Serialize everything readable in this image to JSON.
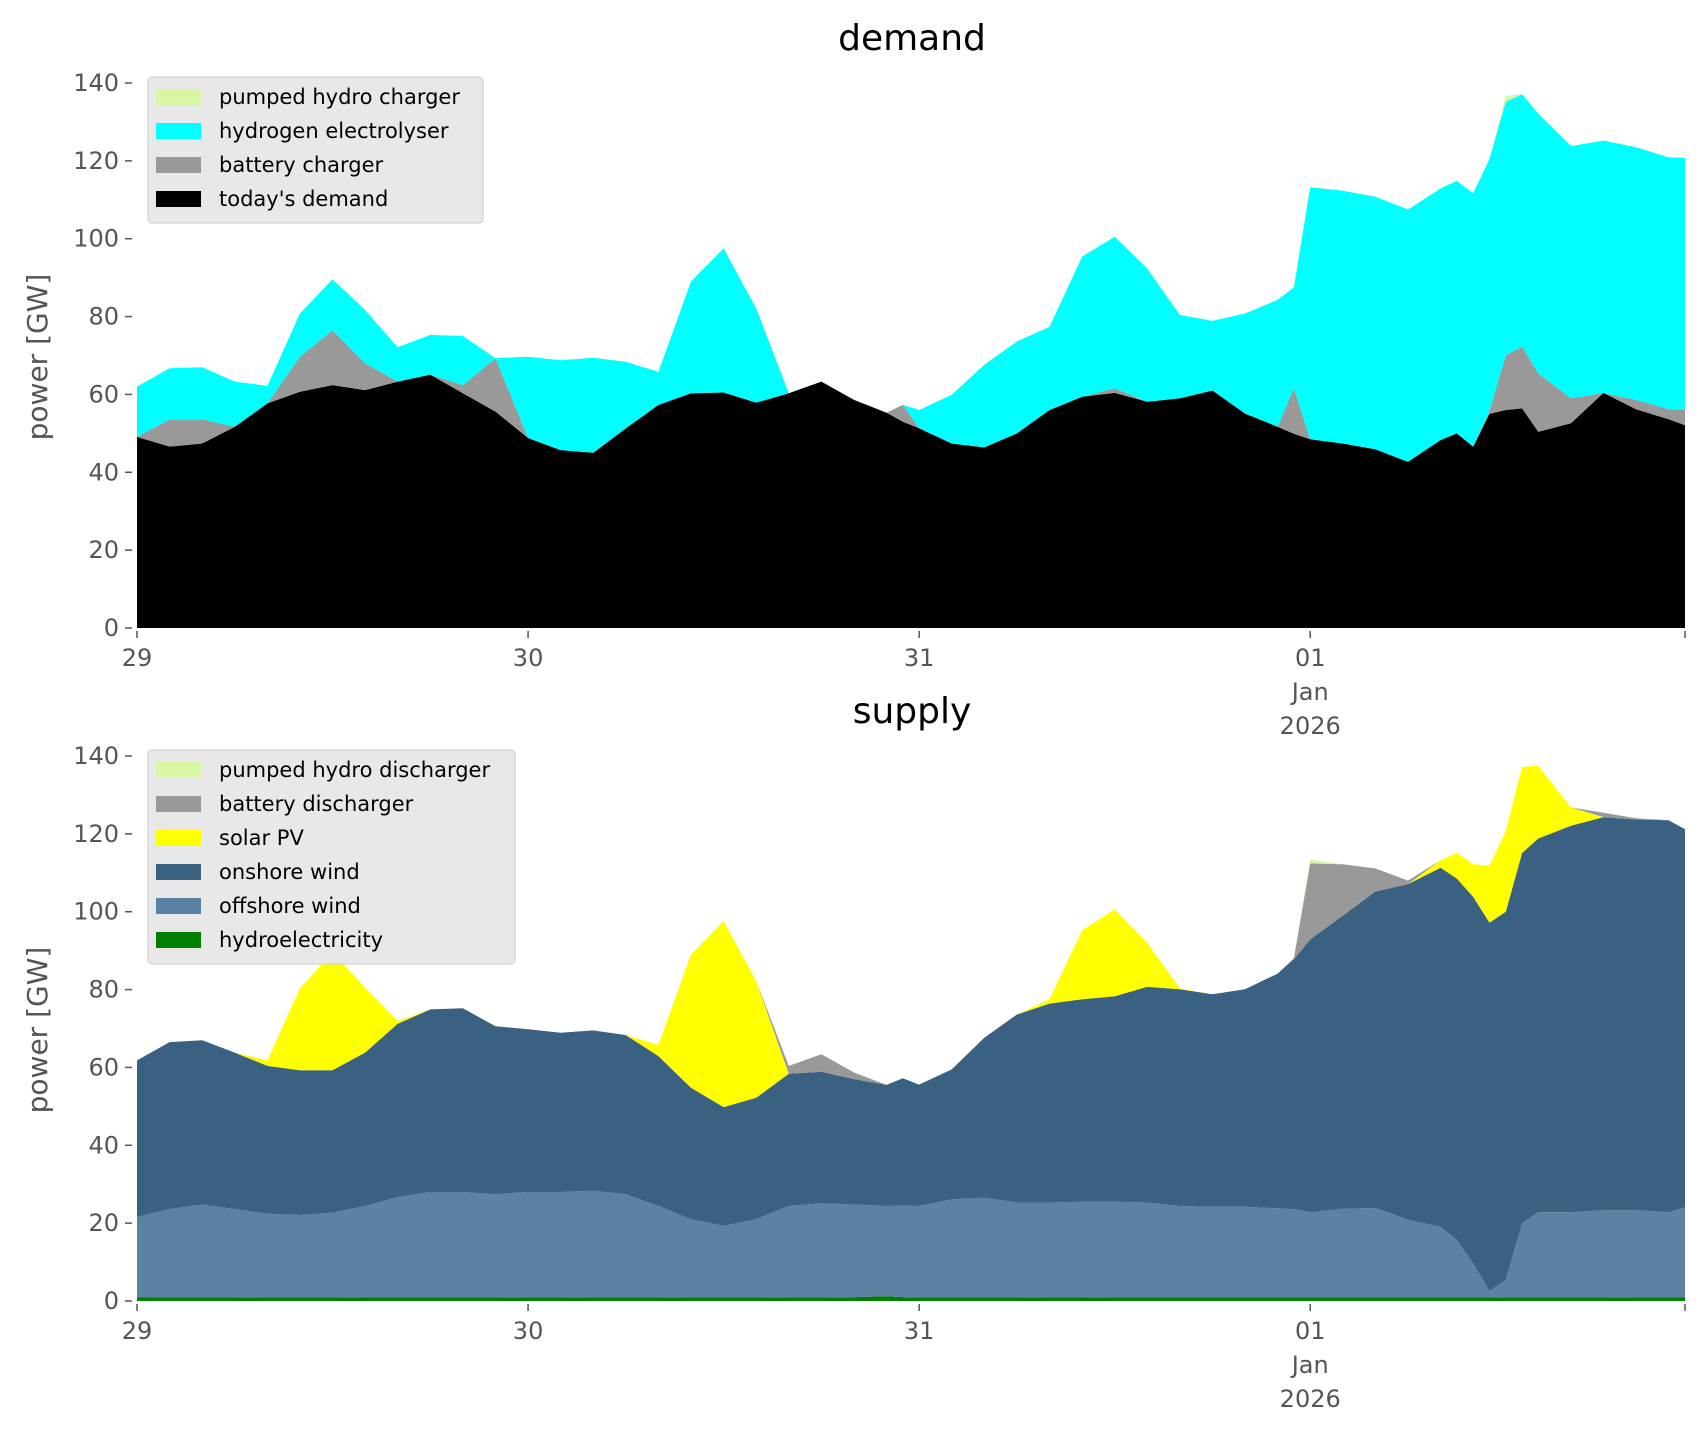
{
  "chart_data": [
    {
      "type": "area",
      "stacked": true,
      "title": "demand",
      "xlabel": "",
      "ylabel": "power [GW]",
      "ylim": [
        0,
        140
      ],
      "yticks": [
        0,
        20,
        40,
        60,
        80,
        100,
        120,
        140
      ],
      "x_unit": "hours since 29 Dec 2025 00:00",
      "xlim": [
        0,
        95
      ],
      "xticks": [
        {
          "hour": 0,
          "label": [
            "29"
          ]
        },
        {
          "hour": 24,
          "label": [
            "30"
          ]
        },
        {
          "hour": 48,
          "label": [
            "31"
          ]
        },
        {
          "hour": 72,
          "label": [
            "01",
            "Jan",
            "2026"
          ]
        },
        {
          "hour": 95,
          "label": [
            ""
          ]
        }
      ],
      "grid": false,
      "legend_position": "top-left",
      "x": [
        0,
        2,
        4,
        6,
        8,
        10,
        12,
        14,
        16,
        18,
        20,
        22,
        24,
        26,
        28,
        30,
        32,
        34,
        36,
        38,
        40,
        42,
        44,
        46,
        47,
        48,
        50,
        52,
        54,
        56,
        58,
        60,
        62,
        64,
        66,
        68,
        70,
        71,
        72,
        74,
        76,
        78,
        80,
        81,
        82,
        83,
        84,
        85,
        86,
        88,
        90,
        92,
        94,
        95
      ],
      "series": [
        {
          "name": "today's demand",
          "color": "#000000",
          "values": [
            49.1,
            46.6,
            47.4,
            51.7,
            57.7,
            60.7,
            62.4,
            61.1,
            63.3,
            65.1,
            60.3,
            55.6,
            48.8,
            45.7,
            45.0,
            51.3,
            57.3,
            60.3,
            60.5,
            57.9,
            60.3,
            63.3,
            58.6,
            55.3,
            53.0,
            51.3,
            47.4,
            46.4,
            50.0,
            56.0,
            59.4,
            60.4,
            58.1,
            59.0,
            61.0,
            55.1,
            51.7,
            49.9,
            48.5,
            47.4,
            45.9,
            42.7,
            48.3,
            50.0,
            46.6,
            55.0,
            56.0,
            56.4,
            50.4,
            52.6,
            60.4,
            56.2,
            53.6,
            52.1
          ]
        },
        {
          "name": "battery charger",
          "color": "#999999",
          "values": [
            0,
            7.0,
            6.2,
            0,
            0,
            9.0,
            14.1,
            6.9,
            0,
            0,
            2.1,
            13.7,
            0,
            0,
            0,
            0,
            0,
            0,
            0,
            0,
            0,
            0,
            0,
            0,
            4.3,
            0,
            0,
            0,
            0,
            0,
            0,
            1.2,
            0,
            0,
            0,
            0,
            0,
            11.7,
            0,
            0,
            0,
            0,
            0,
            0,
            0,
            0.8,
            14.1,
            15.9,
            15.0,
            6.4,
            0,
            2.4,
            2.6,
            3.9
          ]
        },
        {
          "name": "hydrogen electrolyser",
          "color": "#00ffff",
          "values": [
            12.9,
            13.1,
            13.4,
            11.6,
            4.5,
            11.1,
            13.1,
            13.7,
            8.8,
            10.2,
            12.6,
            0,
            20.9,
            23.1,
            24.4,
            17.1,
            8.5,
            28.7,
            37.0,
            24.2,
            0,
            0,
            0,
            0,
            0,
            4.7,
            12.5,
            21.2,
            23.6,
            21.4,
            36.0,
            38.9,
            34.2,
            21.4,
            17.9,
            25.7,
            32.6,
            25.9,
            64.7,
            64.9,
            64.9,
            64.8,
            64.6,
            64.9,
            65.1,
            64.7,
            65.1,
            64.8,
            66.7,
            64.8,
            64.8,
            64.9,
            64.7,
            64.8
          ]
        },
        {
          "name": "pumped hydro charger",
          "color": "#d9f5a6",
          "values": [
            0,
            0,
            0,
            0,
            0,
            0,
            0,
            0,
            0,
            0,
            0,
            0,
            0,
            0,
            0,
            0,
            0,
            0,
            0,
            0,
            0,
            0,
            0,
            0,
            0,
            0,
            0,
            0,
            0,
            0,
            0,
            0,
            0,
            0,
            0,
            0,
            0,
            0,
            0,
            0,
            0,
            0,
            0,
            0,
            0,
            0,
            1.5,
            0,
            0,
            0,
            0,
            0,
            0,
            0
          ]
        }
      ],
      "legend": [
        "pumped hydro charger",
        "hydrogen electrolyser",
        "battery charger",
        "today's demand"
      ]
    },
    {
      "type": "area",
      "stacked": true,
      "title": "supply",
      "xlabel": "",
      "ylabel": "power [GW]",
      "ylim": [
        0,
        140
      ],
      "yticks": [
        0,
        20,
        40,
        60,
        80,
        100,
        120,
        140
      ],
      "x_unit": "hours since 29 Dec 2025 00:00",
      "xlim": [
        0,
        95
      ],
      "xticks": [
        {
          "hour": 0,
          "label": [
            "29"
          ]
        },
        {
          "hour": 24,
          "label": [
            "30"
          ]
        },
        {
          "hour": 48,
          "label": [
            "31"
          ]
        },
        {
          "hour": 72,
          "label": [
            "01",
            "Jan",
            "2026"
          ]
        },
        {
          "hour": 95,
          "label": [
            ""
          ]
        }
      ],
      "grid": false,
      "legend_position": "top-left",
      "x": [
        0,
        2,
        4,
        6,
        8,
        10,
        12,
        14,
        16,
        18,
        20,
        22,
        24,
        26,
        28,
        30,
        32,
        34,
        36,
        38,
        40,
        42,
        44,
        46,
        47,
        48,
        50,
        52,
        54,
        56,
        58,
        60,
        62,
        64,
        66,
        68,
        70,
        71,
        72,
        74,
        76,
        78,
        80,
        81,
        82,
        83,
        84,
        85,
        86,
        88,
        90,
        92,
        94,
        95
      ],
      "series": [
        {
          "name": "hydroelectricity",
          "color": "#008000",
          "values": [
            0.9,
            0.9,
            0.9,
            0.9,
            1.0,
            1.0,
            1.0,
            0.9,
            0.9,
            0.9,
            0.9,
            0.9,
            1.0,
            1.0,
            0.9,
            0.9,
            0.9,
            1.0,
            1.0,
            1.0,
            0.9,
            0.9,
            1.0,
            1.2,
            1.0,
            0.9,
            0.9,
            0.9,
            0.9,
            1.0,
            1.0,
            0.9,
            0.9,
            0.9,
            0.9,
            0.9,
            0.9,
            0.9,
            0.9,
            0.9,
            0.9,
            0.9,
            0.9,
            0.9,
            0.9,
            0.9,
            1.0,
            1.0,
            1.0,
            1.0,
            1.0,
            0.9,
            0.9,
            0.9
          ]
        },
        {
          "name": "offshore wind",
          "color": "#5b82a3",
          "values": [
            20.7,
            22.7,
            23.9,
            22.7,
            21.4,
            21.1,
            21.7,
            23.5,
            25.8,
            27.1,
            27.1,
            26.5,
            27.0,
            27.0,
            27.4,
            26.5,
            23.5,
            20.0,
            18.3,
            20.0,
            23.5,
            24.2,
            23.8,
            23.2,
            23.5,
            23.5,
            25.2,
            25.6,
            24.4,
            24.3,
            24.5,
            24.6,
            24.4,
            23.5,
            23.3,
            23.3,
            22.9,
            22.7,
            21.9,
            22.8,
            23.0,
            20.0,
            18.1,
            14.8,
            8.7,
            1.7,
            4.4,
            19.0,
            21.8,
            21.8,
            22.3,
            22.4,
            21.9,
            23.2
          ]
        },
        {
          "name": "onshore wind",
          "color": "#3b6182",
          "values": [
            40.2,
            42.9,
            42.2,
            40.2,
            38.0,
            37.2,
            36.6,
            39.4,
            44.5,
            46.9,
            47.2,
            43.2,
            41.8,
            40.9,
            41.2,
            40.9,
            38.5,
            33.8,
            30.5,
            31.2,
            34.0,
            33.8,
            32.2,
            31.1,
            32.7,
            31.2,
            33.4,
            41.1,
            48.3,
            51.1,
            52.0,
            52.8,
            55.4,
            55.7,
            54.6,
            55.9,
            60.3,
            64.2,
            70.1,
            75.3,
            81.3,
            86.2,
            92.3,
            92.8,
            94.2,
            94.6,
            94.6,
            95.1,
            96.0,
            99.3,
            101.0,
            100.4,
            100.7,
            97.1
          ]
        },
        {
          "name": "solar PV",
          "color": "#ffff00",
          "values": [
            0,
            0,
            0,
            0,
            1.4,
            21.0,
            30.2,
            16.7,
            0.7,
            0,
            0,
            0,
            0,
            0,
            0,
            0,
            2.9,
            34.2,
            47.8,
            30.0,
            0,
            0,
            0,
            0,
            0,
            0,
            0,
            0,
            0,
            1.1,
            17.7,
            22.3,
            11.3,
            0.2,
            0,
            0,
            0,
            0,
            0,
            0,
            0,
            0,
            1.9,
            6.6,
            8.4,
            14.6,
            20.7,
            22.1,
            18.7,
            4.7,
            0,
            0,
            0,
            0
          ]
        },
        {
          "name": "battery discharger",
          "color": "#999999",
          "values": [
            0,
            0,
            0,
            0,
            0,
            0,
            0,
            0,
            0,
            0,
            0,
            0,
            0,
            0,
            0,
            0,
            0,
            0,
            0,
            0,
            2.0,
            4.5,
            1.7,
            0,
            0,
            0,
            0,
            0,
            0,
            0,
            0,
            0,
            0,
            0,
            0,
            0,
            0,
            0.3,
            19.5,
            13.2,
            5.9,
            0.9,
            0,
            0,
            0,
            0,
            0,
            0,
            0,
            0,
            1.1,
            0.3,
            0,
            0
          ]
        },
        {
          "name": "pumped hydro discharger",
          "color": "#d9f5a6",
          "values": [
            0,
            0,
            0,
            0,
            0,
            0,
            0,
            0,
            0,
            0,
            0,
            0,
            0,
            0,
            0,
            0,
            0,
            0,
            0,
            0,
            0,
            0,
            0,
            0,
            0,
            0,
            0,
            0,
            0,
            0,
            0,
            0,
            0,
            0,
            0,
            0,
            0,
            0,
            1.0,
            0,
            0,
            0,
            0,
            0,
            0,
            0,
            0,
            0,
            0,
            0,
            0,
            0,
            0,
            0
          ]
        }
      ],
      "legend": [
        "pumped hydro discharger",
        "battery discharger",
        "solar PV",
        "onshore wind",
        "offshore wind",
        "hydroelectricity"
      ]
    }
  ]
}
